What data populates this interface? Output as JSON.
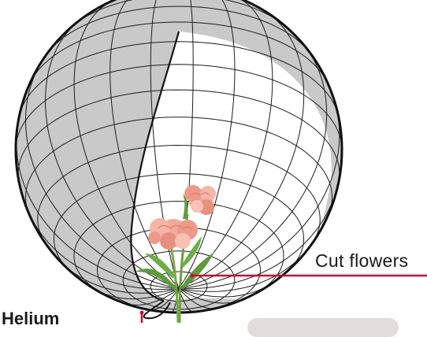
{
  "labels": {
    "cut_flowers": "Cut flowers",
    "helium": "Helium"
  },
  "colors": {
    "outline": "#111111",
    "mesh": "#1c1c1c",
    "shaded_region": "#c9c9c9",
    "leader_line": "#c8102e",
    "petal": "#f2a99a",
    "petal_dark": "#e37e6e",
    "stem": "#7aa84a",
    "leaf": "#5f9a3c",
    "tag_background": "#e1ddda"
  },
  "icons": {
    "flower": "carnation-bouquet-icon"
  }
}
